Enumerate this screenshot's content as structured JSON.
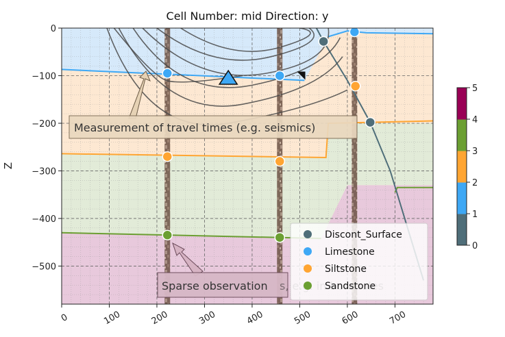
{
  "chart_data": {
    "type": "scatter",
    "title": "Cell Number: mid Direction: y",
    "xlabel": "",
    "ylabel": "Z",
    "xlim": [
      0,
      780
    ],
    "ylim": [
      -580,
      0
    ],
    "x_ticks": [
      0,
      100,
      200,
      300,
      400,
      500,
      600,
      700
    ],
    "y_ticks": [
      0,
      -100,
      -200,
      -300,
      -400,
      -500
    ],
    "x_tick_labels": [
      "0",
      "100",
      "200",
      "300",
      "400",
      "500",
      "600",
      "700"
    ],
    "y_tick_labels": [
      "0",
      "−100",
      "−200",
      "−300",
      "−400",
      "−500"
    ],
    "grid": true,
    "legend_position": "bottom-right",
    "legend": [
      {
        "name": "Discont_Surface",
        "color": "#4f6e79"
      },
      {
        "name": "Limestone",
        "color": "#3ea8f5"
      },
      {
        "name": "Siltstone",
        "color": "#ffa532"
      },
      {
        "name": "Sandstone",
        "color": "#6b9f32"
      }
    ],
    "colorbar": {
      "ticks": [
        0,
        1,
        2,
        3,
        4,
        5
      ],
      "tick_labels": [
        "0",
        "1",
        "2",
        "3",
        "4",
        "5"
      ],
      "colors": [
        "#4f6e79",
        "#3ea8f5",
        "#ffa532",
        "#6b9f32",
        "#990055"
      ]
    },
    "layer_colors": {
      "limestone": "#d6e9fa",
      "siltstone": "#fde8d2",
      "sandstone": "#e2ebd8",
      "basement": "#e8c9dc"
    },
    "points": {
      "Discont_Surface": [
        [
          550,
          -28
        ],
        [
          648,
          -198
        ]
      ],
      "Limestone": [
        [
          222,
          -95
        ],
        [
          458,
          -100
        ],
        [
          615,
          -8
        ]
      ],
      "Siltstone": [
        [
          222,
          -270
        ],
        [
          458,
          -280
        ],
        [
          617,
          -122
        ]
      ],
      "Sandstone": [
        [
          222,
          -435
        ],
        [
          458,
          -440
        ]
      ]
    },
    "boreholes_x": [
      222,
      458,
      615
    ],
    "source_point": [
      350,
      -108
    ],
    "receiver_point": [
      503,
      -100
    ],
    "annotations": [
      {
        "text": "Measurement of travel times (e.g. seismics)",
        "target": [
          185,
          -95
        ]
      },
      {
        "text": "Sparse observation",
        "faded_text": "s, e.g. in boreholes",
        "target": [
          222,
          -445
        ]
      }
    ]
  }
}
